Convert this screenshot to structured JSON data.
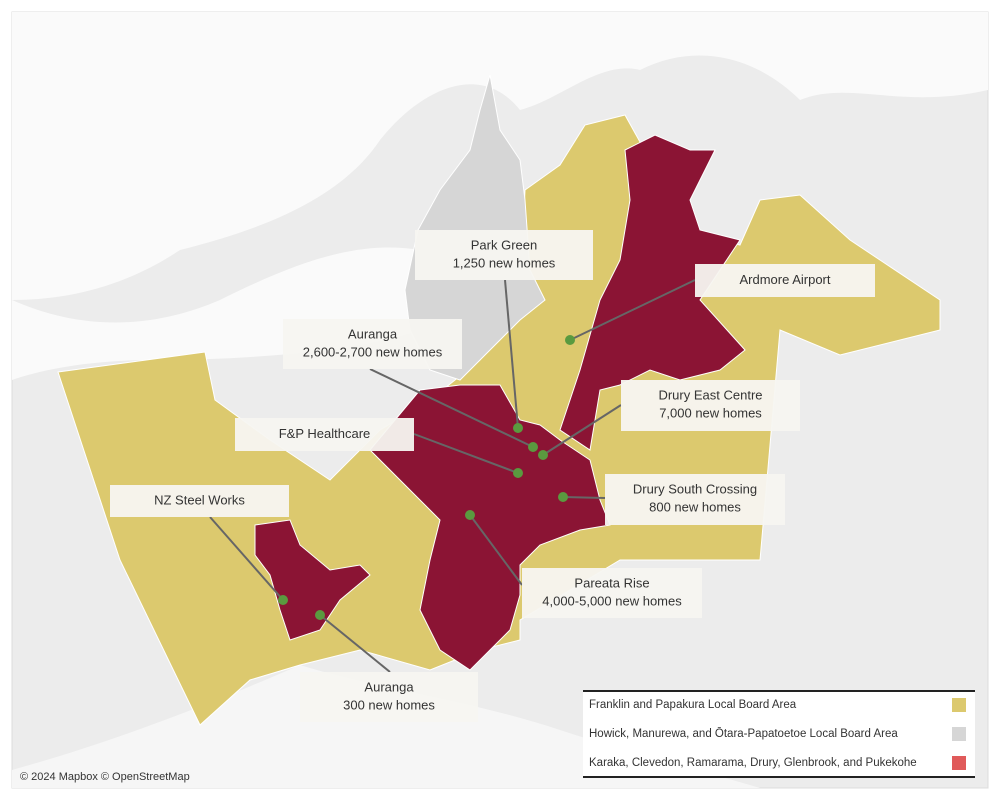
{
  "callouts": [
    {
      "title": "Park Green",
      "detail": "1,250 new homes"
    },
    {
      "title": "Ardmore Airport"
    },
    {
      "title": "Auranga",
      "detail": "2,600-2,700 new homes"
    },
    {
      "title": "F&P Healthcare"
    },
    {
      "title": "Drury East Centre",
      "detail": "7,000 new homes"
    },
    {
      "title": "NZ Steel Works"
    },
    {
      "title": "Drury South Crossing",
      "detail": "800 new homes"
    },
    {
      "title": "Pareata Rise",
      "detail": "4,000-5,000 new homes"
    },
    {
      "title": "Auranga",
      "detail": "300 new homes"
    }
  ],
  "legend": [
    {
      "label": "Franklin and Papakura Local Board Area",
      "color": "#dcc96e"
    },
    {
      "label": "Howick, Manurewa, and Ōtara-Papatoetoe Local Board Area",
      "color": "#d6d6d6"
    },
    {
      "label": "Karaka, Clevedon, Ramarama, Drury, Glenbrook, and Pukekohe",
      "color": "#e05a5a"
    }
  ],
  "attribution": "© 2024 Mapbox © OpenStreetMap"
}
